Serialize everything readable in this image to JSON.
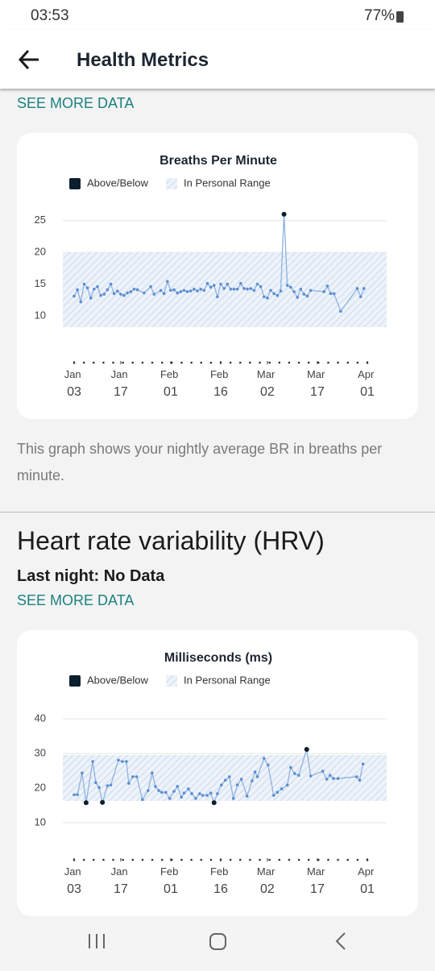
{
  "status_bar": {
    "time": "03:53",
    "battery": "77%"
  },
  "app_bar": {
    "title": "Health Metrics"
  },
  "breathing": {
    "link": "SEE MORE DATA",
    "description": "This graph shows your nightly average BR in breaths per minute."
  },
  "hrv": {
    "heading": "Heart rate variability (HRV)",
    "last_night": "Last night: No Data",
    "link": "SEE MORE DATA"
  },
  "chart_data": [
    {
      "type": "line",
      "title": "Breaths Per Minute",
      "legend": [
        "Above/Below",
        "In Personal Range"
      ],
      "line_color": "#8fb2e0",
      "point_color": "#5b8ed1",
      "outlier_color": "#0d1f2d",
      "range_color": "#d6e1f0",
      "personal_range": [
        8.2,
        20
      ],
      "grid": true,
      "xlim": [
        0,
        88
      ],
      "xticks": [
        {
          "value": 0,
          "label": "Jan 03"
        },
        {
          "value": 14,
          "label": "Jan 17"
        },
        {
          "value": 29,
          "label": "Feb 01"
        },
        {
          "value": 44,
          "label": "Feb 16"
        },
        {
          "value": 58,
          "label": "Mar 02"
        },
        {
          "value": 73,
          "label": "Mar 17"
        },
        {
          "value": 88,
          "label": "Apr 01"
        }
      ],
      "ylim": [
        3,
        27
      ],
      "yticks": [
        10,
        15,
        20,
        25
      ],
      "x": [
        0,
        1,
        2,
        3,
        4,
        5,
        6,
        7,
        8,
        9,
        10,
        11,
        12,
        13,
        14,
        15,
        16,
        17,
        18,
        19,
        21,
        23,
        24,
        26,
        27,
        28,
        29,
        30,
        31,
        32,
        33,
        34,
        35,
        36,
        37,
        38,
        39,
        40,
        41,
        42,
        43,
        44,
        45,
        46,
        47,
        48,
        49,
        50,
        51,
        52,
        53,
        54,
        55,
        56,
        57,
        58,
        59,
        60,
        61,
        62,
        63,
        64,
        65,
        66,
        67,
        68,
        69,
        70,
        71,
        75,
        76,
        77,
        78,
        80,
        85,
        86,
        87
      ],
      "values": [
        13.1,
        14.1,
        12.2,
        15.0,
        14.4,
        12.8,
        14.2,
        14.6,
        13.2,
        13.4,
        14.1,
        15.0,
        13.5,
        13.9,
        13.4,
        13.2,
        13.6,
        13.8,
        14.2,
        14.1,
        13.6,
        14.6,
        13.4,
        14.0,
        13.5,
        15.4,
        14.0,
        14.1,
        13.6,
        13.8,
        14.0,
        13.8,
        13.9,
        14.2,
        13.9,
        14.2,
        14.0,
        15.1,
        14.5,
        14.8,
        13.0,
        15.0,
        14.3,
        15.0,
        14.2,
        14.2,
        14.2,
        15.1,
        14.3,
        14.2,
        14.3,
        14.0,
        15.0,
        14.6,
        13.0,
        12.8,
        14.0,
        13.5,
        13.2,
        13.9,
        26.0,
        14.8,
        14.5,
        13.8,
        12.9,
        14.2,
        13.4,
        13.1,
        14.0,
        13.8,
        14.7,
        13.5,
        13.5,
        10.7,
        14.3,
        13.0,
        14.3
      ]
    },
    {
      "type": "line",
      "title": "Milliseconds (ms)",
      "legend": [
        "Above/Below",
        "In Personal Range"
      ],
      "line_color": "#8fb2e0",
      "point_color": "#5b8ed1",
      "outlier_color": "#0d1f2d",
      "range_color": "#d6e1f0",
      "personal_range": [
        16.3,
        29.6
      ],
      "grid": true,
      "xlim": [
        0,
        88
      ],
      "xticks": [
        {
          "value": 0,
          "label": "Jan 03"
        },
        {
          "value": 14,
          "label": "Jan 17"
        },
        {
          "value": 29,
          "label": "Feb 01"
        },
        {
          "value": 44,
          "label": "Feb 16"
        },
        {
          "value": 58,
          "label": "Mar 02"
        },
        {
          "value": 73,
          "label": "Mar 17"
        },
        {
          "value": 88,
          "label": "Apr 01"
        }
      ],
      "ylim": [
        0,
        44
      ],
      "yticks": [
        10,
        20,
        30,
        40
      ],
      "x": [
        0,
        1,
        2.4,
        3.6,
        5.6,
        6.5,
        7.5,
        8.5,
        10,
        11,
        13.3,
        14.5,
        15.7,
        16.4,
        17.6,
        18.8,
        20.5,
        22.2,
        23.4,
        24.4,
        25.4,
        26.3,
        27.5,
        28.7,
        30,
        31,
        32.2,
        33,
        34.3,
        35.3,
        36.5,
        37.7,
        38.6,
        39.9,
        41,
        42,
        43,
        44.2,
        45.4,
        46.6,
        47.8,
        49,
        50.2,
        51.9,
        53.4,
        54.3,
        55,
        57,
        58.2,
        59.9,
        61,
        62.3,
        64,
        65,
        66.2,
        67.4,
        69.8,
        71,
        74.6,
        75.8,
        76.8,
        77.8,
        79.2,
        84.8,
        85.7,
        86.7
      ],
      "values": [
        18.1,
        18.1,
        24.4,
        15.8,
        27.7,
        21.6,
        20.2,
        15.9,
        20.7,
        20.9,
        28.1,
        27.7,
        27.7,
        21.4,
        23.3,
        23.3,
        16.7,
        19.3,
        24.4,
        20.5,
        19.3,
        18.8,
        18.8,
        17.0,
        19.1,
        20.5,
        17.4,
        18.6,
        19.8,
        18.4,
        17.0,
        18.4,
        17.9,
        17.9,
        18.6,
        15.8,
        18.4,
        20.9,
        22.3,
        23.3,
        17.0,
        20.9,
        22.6,
        17.7,
        22.1,
        24.7,
        23.3,
        28.6,
        26.7,
        17.9,
        18.8,
        19.8,
        20.9,
        26.0,
        24.2,
        23.7,
        31.2,
        23.5,
        24.9,
        22.6,
        23.7,
        22.8,
        22.8,
        23.3,
        22.3,
        27.0
      ]
    }
  ]
}
